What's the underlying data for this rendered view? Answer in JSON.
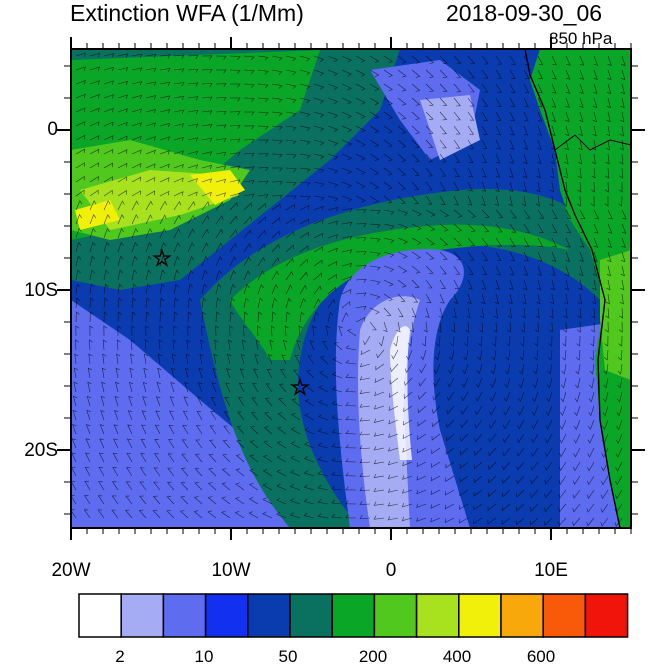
{
  "header": {
    "title": "Extinction WFA (1/Mm)",
    "datetime": "2018-09-30_06",
    "level": "850 hPa"
  },
  "map": {
    "lon_range": [
      -20,
      15
    ],
    "lat_range": [
      -25,
      5
    ],
    "x_ticks": [
      "20W",
      "10W",
      "0",
      "10E"
    ],
    "y_ticks": [
      "0",
      "10S",
      "20S"
    ],
    "markers": [
      {
        "name": "star",
        "lon": -14.4,
        "lat": -8.0
      },
      {
        "name": "star",
        "lon": -5.7,
        "lat": -15.9
      }
    ]
  },
  "colorbar": {
    "colors": [
      "#ffffff",
      "#a6acf4",
      "#5e6cf0",
      "#1230f0",
      "#0a3cb0",
      "#0a7060",
      "#0aa628",
      "#50c81e",
      "#a8e21e",
      "#f0f00a",
      "#f8a80a",
      "#f85a0a",
      "#f0140a"
    ],
    "labels": [
      "2",
      "10",
      "50",
      "200",
      "400",
      "600"
    ]
  }
}
